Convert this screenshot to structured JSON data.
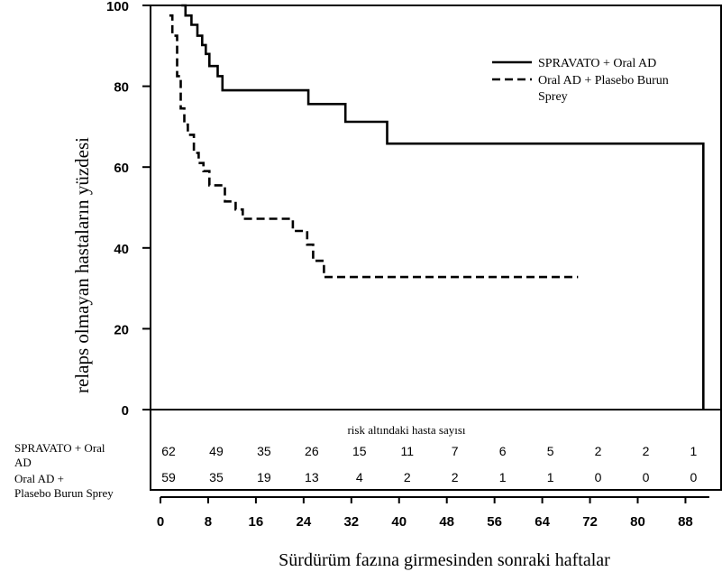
{
  "chart_data": {
    "type": "line",
    "title": "",
    "xlabel": "Sürdürüm fazına girmesinden sonraki haftalar",
    "ylabel": "relaps olmayan hastaların yüzdesi",
    "xlim": [
      0,
      92
    ],
    "ylim": [
      0,
      100
    ],
    "x_ticks": [
      0,
      8,
      16,
      24,
      32,
      40,
      48,
      56,
      64,
      72,
      80,
      88
    ],
    "y_ticks": [
      0,
      20,
      40,
      60,
      80,
      100
    ],
    "legend_position": "top-right",
    "series": [
      {
        "name": "SPRAVATO + Oral AD",
        "style": "solid",
        "color": "#000000",
        "x": [
          3.5,
          4.2,
          4.2,
          5.2,
          5.2,
          6.2,
          6.2,
          7.0,
          7.0,
          7.6,
          7.6,
          8.2,
          8.2,
          9.6,
          9.6,
          10.4,
          10.4,
          24.8,
          24.8,
          31.0,
          31.0,
          38.0,
          38.0,
          91.0,
          91.0
        ],
        "values": [
          100,
          100,
          97.5,
          97.5,
          95.2,
          95.2,
          92.5,
          92.5,
          90.2,
          90.2,
          88.0,
          88.0,
          85.0,
          85.0,
          82.5,
          82.5,
          79.0,
          79.0,
          75.6,
          75.6,
          71.2,
          71.2,
          65.8,
          65.8,
          0
        ]
      },
      {
        "name": "Oral AD + Plasebo Burun Sprey",
        "style": "dashed",
        "color": "#000000",
        "x": [
          1.5,
          2.0,
          2.0,
          2.8,
          2.8,
          3.4,
          3.4,
          4.0,
          4.0,
          4.6,
          4.6,
          5.6,
          5.6,
          6.4,
          6.4,
          7.2,
          7.2,
          8.2,
          8.2,
          10.8,
          10.8,
          12.6,
          12.6,
          13.8,
          13.8,
          22.2,
          22.2,
          24.6,
          24.6,
          25.6,
          25.6,
          27.4,
          27.4,
          28.2,
          28.2,
          70.0
        ],
        "values": [
          97.5,
          97.5,
          92.5,
          92.5,
          82.5,
          82.5,
          74.5,
          74.5,
          70.5,
          70.5,
          68.0,
          68.0,
          63.5,
          63.5,
          61.0,
          61.0,
          59.0,
          59.0,
          55.5,
          55.5,
          51.5,
          51.5,
          49.5,
          49.5,
          47.2,
          47.2,
          44.2,
          44.2,
          40.8,
          40.8,
          36.8,
          36.8,
          32.8,
          32.8,
          32.8,
          32.8
        ]
      }
    ],
    "risk_table": {
      "title": "risk altındaki hasta sayısı",
      "weeks": [
        0,
        8,
        16,
        24,
        32,
        40,
        48,
        56,
        64,
        72,
        80,
        88
      ],
      "rows": [
        {
          "label": "SPRAVATO + Oral AD",
          "counts": [
            "62",
            "49",
            "35",
            "26",
            "15",
            "11",
            "7",
            "6",
            "5",
            "2",
            "2",
            "1"
          ]
        },
        {
          "label": "Oral AD + Plasebo Burun Sprey",
          "counts": [
            "59",
            "35",
            "19",
            "13",
            "4",
            "2",
            "2",
            "1",
            "1",
            "0",
            "0",
            "0"
          ]
        }
      ]
    }
  }
}
